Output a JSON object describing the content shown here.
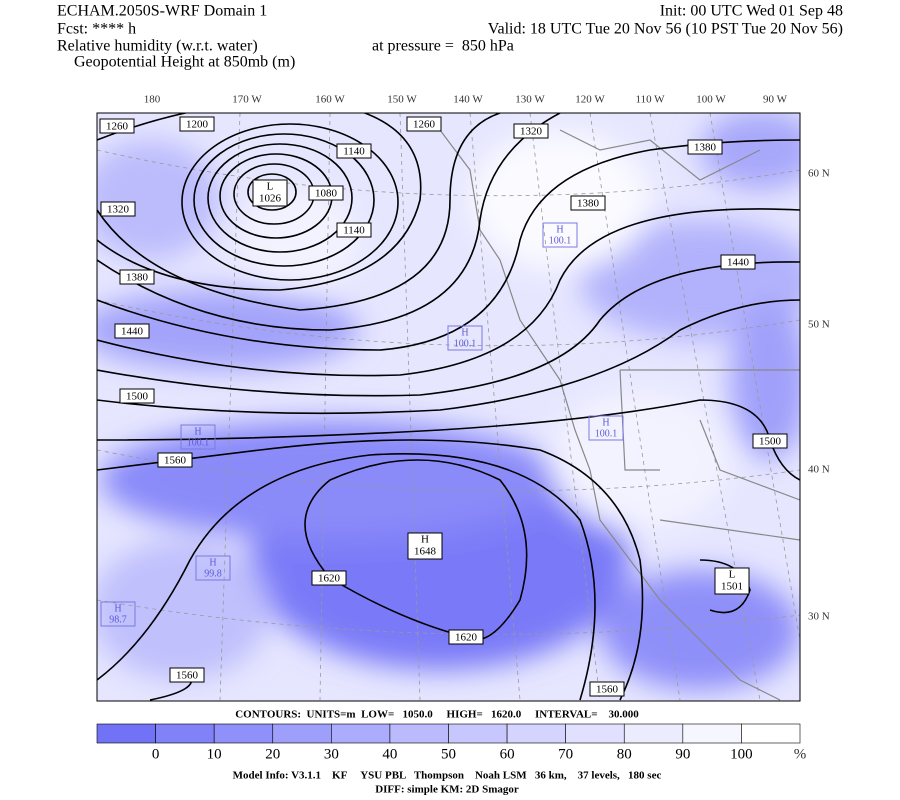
{
  "header": {
    "left": [
      "ECHAM.2050S-WRF Domain 1",
      "Fcst: **** h",
      "Relative humidity (w.r.t. water)",
      "Geopotential Height at 850mb (m)"
    ],
    "pressure": "at pressure =  850 hPa",
    "init": "Init: 00 UTC Wed 01 Sep 48",
    "valid": "Valid: 18 UTC Tue 20 Nov 56 (10 PST Tue 20 Nov 56)"
  },
  "longitudes": [
    "180",
    "170 W",
    "160 W",
    "150 W",
    "140 W",
    "130 W",
    "120 W",
    "110 W",
    "100 W",
    "90 W"
  ],
  "latitudes": [
    "60 N",
    "50 N",
    "40 N",
    "30 N"
  ],
  "contour_labels": [
    "1260",
    "1200",
    "1140",
    "1260",
    "1320",
    "1380",
    "1320",
    "1080",
    "1140",
    "1380",
    "1440",
    "1380",
    "1440",
    "1500",
    "1500",
    "1560",
    "1620",
    "1620",
    "1560",
    "1560"
  ],
  "centers": [
    {
      "letter": "L",
      "value": "1026"
    },
    {
      "letter": "H",
      "value": "1648"
    },
    {
      "letter": "L",
      "value": "1501"
    }
  ],
  "rh_extrema": [
    {
      "letter": "H",
      "value": "100.1"
    },
    {
      "letter": "H",
      "value": "100.1"
    },
    {
      "letter": "H",
      "value": "100.1"
    },
    {
      "letter": "H",
      "value": "99.8"
    },
    {
      "letter": "H",
      "value": "98.7"
    },
    {
      "letter": "H",
      "value": "100.1"
    }
  ],
  "contour_info": "CONTOURS:  UNITS=m  LOW=   1050.0     HIGH=   1620.0     INTERVAL=    30.000",
  "colorbar": {
    "labels": [
      "0",
      "10",
      "20",
      "30",
      "40",
      "50",
      "60",
      "70",
      "80",
      "90",
      "100"
    ],
    "unit": "%",
    "colors": [
      "#7272f7",
      "#8282f8",
      "#9090fa",
      "#9e9efb",
      "#acacfc",
      "#babafd",
      "#c7c7fe",
      "#d4d4fe",
      "#e1e1ff",
      "#ececff",
      "#f6f6ff",
      "#ffffff"
    ]
  },
  "footer": [
    "Model Info: V3.1.1    KF     YSU PBL   Thompson    Noah LSM   36 km,    37 levels,   180 sec",
    "DIFF: simple KM: 2D Smagor"
  ]
}
